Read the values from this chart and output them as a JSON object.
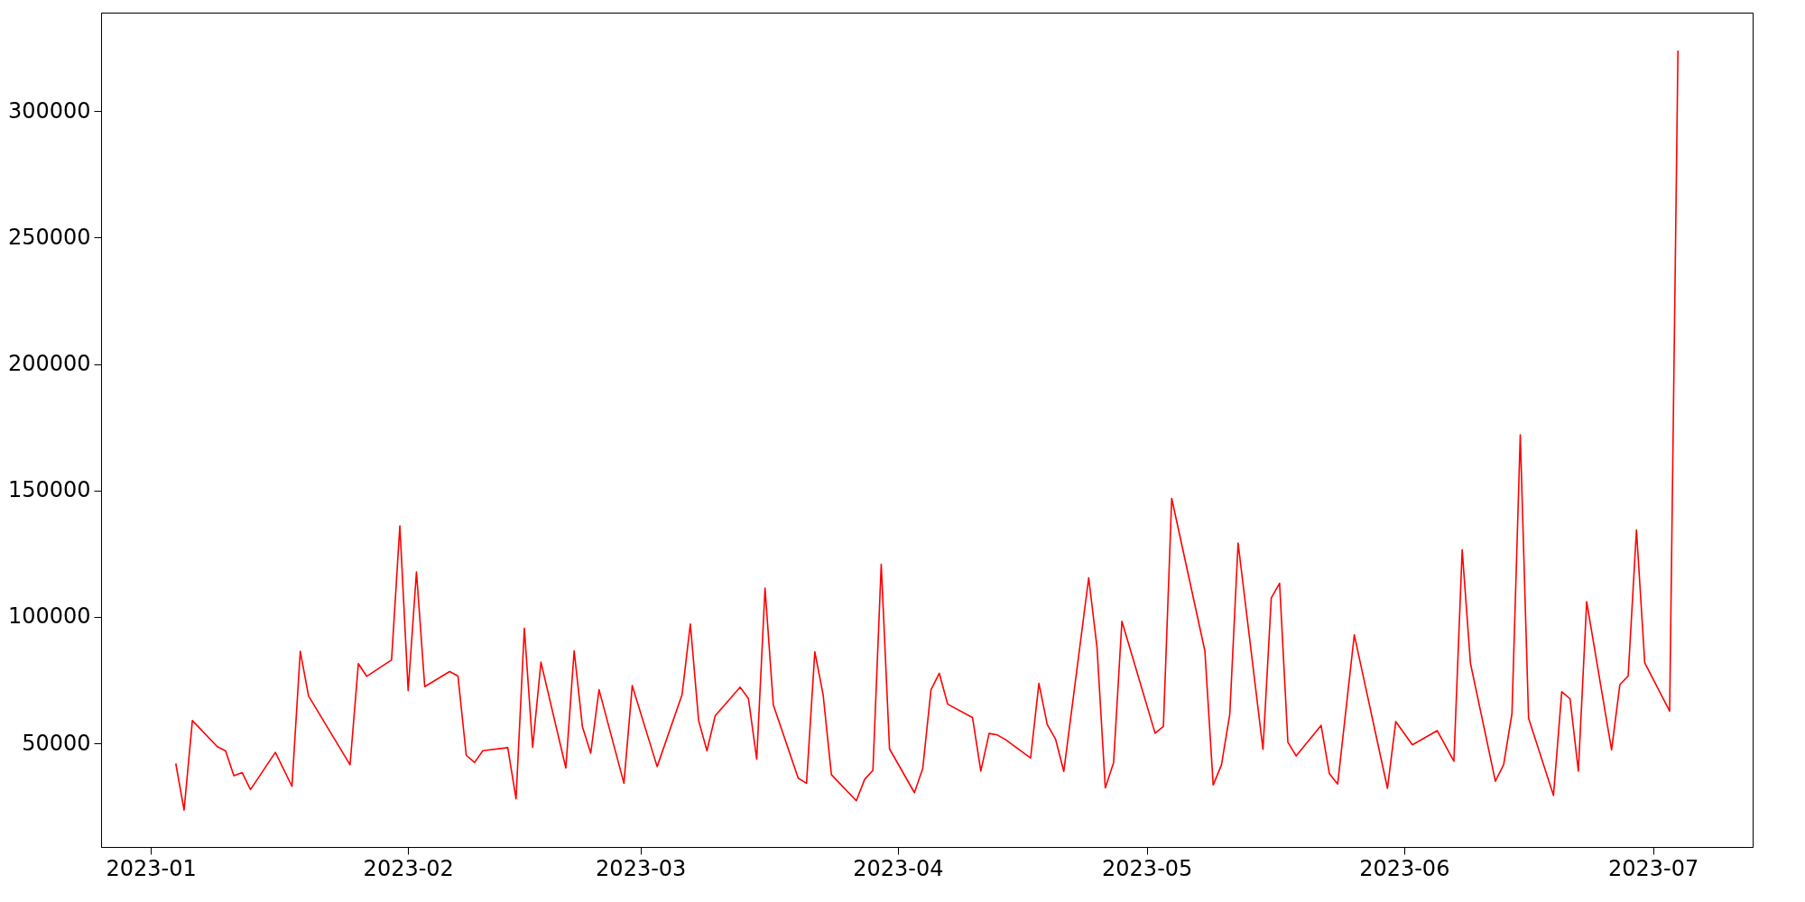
{
  "chart_data": {
    "type": "line",
    "x": [
      "2023-01-04",
      "2023-01-05",
      "2023-01-06",
      "2023-01-09",
      "2023-01-10",
      "2023-01-11",
      "2023-01-12",
      "2023-01-13",
      "2023-01-16",
      "2023-01-18",
      "2023-01-19",
      "2023-01-20",
      "2023-01-25",
      "2023-01-26",
      "2023-01-27",
      "2023-01-30",
      "2023-01-31",
      "2023-02-01",
      "2023-02-02",
      "2023-02-03",
      "2023-02-06",
      "2023-02-07",
      "2023-02-08",
      "2023-02-09",
      "2023-02-10",
      "2023-02-13",
      "2023-02-14",
      "2023-02-15",
      "2023-02-16",
      "2023-02-17",
      "2023-02-20",
      "2023-02-21",
      "2023-02-22",
      "2023-02-23",
      "2023-02-24",
      "2023-02-27",
      "2023-02-28",
      "2023-03-03",
      "2023-03-06",
      "2023-03-07",
      "2023-03-08",
      "2023-03-09",
      "2023-03-10",
      "2023-03-13",
      "2023-03-14",
      "2023-03-15",
      "2023-03-16",
      "2023-03-17",
      "2023-03-20",
      "2023-03-21",
      "2023-03-22",
      "2023-03-23",
      "2023-03-24",
      "2023-03-27",
      "2023-03-28",
      "2023-03-29",
      "2023-03-30",
      "2023-03-31",
      "2023-04-03",
      "2023-04-04",
      "2023-04-05",
      "2023-04-06",
      "2023-04-07",
      "2023-04-10",
      "2023-04-11",
      "2023-04-12",
      "2023-04-13",
      "2023-04-14",
      "2023-04-17",
      "2023-04-18",
      "2023-04-19",
      "2023-04-20",
      "2023-04-21",
      "2023-04-24",
      "2023-04-25",
      "2023-04-26",
      "2023-04-27",
      "2023-04-28",
      "2023-05-02",
      "2023-05-03",
      "2023-05-04",
      "2023-05-08",
      "2023-05-09",
      "2023-05-10",
      "2023-05-11",
      "2023-05-12",
      "2023-05-15",
      "2023-05-16",
      "2023-05-17",
      "2023-05-18",
      "2023-05-19",
      "2023-05-22",
      "2023-05-23",
      "2023-05-24",
      "2023-05-26",
      "2023-05-30",
      "2023-05-31",
      "2023-06-02",
      "2023-06-05",
      "2023-06-07",
      "2023-06-08",
      "2023-06-09",
      "2023-06-12",
      "2023-06-13",
      "2023-06-14",
      "2023-06-15",
      "2023-06-16",
      "2023-06-19",
      "2023-06-20",
      "2023-06-21",
      "2023-06-22",
      "2023-06-23",
      "2023-06-26",
      "2023-06-27",
      "2023-06-28",
      "2023-06-29",
      "2023-06-30",
      "2023-07-03",
      "2023-07-04"
    ],
    "series": [
      {
        "color": "#ff0000",
        "values": [
          42000,
          23600,
          59000,
          48700,
          47000,
          37200,
          38400,
          31700,
          46400,
          33000,
          86400,
          68700,
          41500,
          81500,
          76500,
          83000,
          136000,
          70800,
          117800,
          72400,
          78400,
          76600,
          45300,
          42400,
          47100,
          48300,
          28000,
          95500,
          48400,
          82100,
          40200,
          86600,
          56500,
          46100,
          71200,
          34200,
          72800,
          40800,
          69200,
          97200,
          59000,
          47100,
          60900,
          72200,
          67700,
          43700,
          111400,
          65200,
          36200,
          34200,
          86200,
          69200,
          37600,
          27300,
          35700,
          39300,
          120800,
          47800,
          30500,
          40000,
          71200,
          77700,
          65500,
          60200,
          39000,
          53900,
          53300,
          51400,
          44200,
          73700,
          57500,
          51700,
          38900,
          115500,
          88000,
          32400,
          42400,
          98300,
          54000,
          56700,
          146900,
          86500,
          33500,
          41500,
          61600,
          129200,
          47600,
          107500,
          113300,
          50400,
          45000,
          57100,
          38000,
          33900,
          92900,
          32200,
          58600,
          49400,
          55000,
          42900,
          126500,
          81600,
          35000,
          41600,
          61800,
          172000,
          59900,
          29400,
          70400,
          67600,
          39000,
          106000,
          47400,
          73200,
          76600,
          134400,
          81800,
          62700,
          324000
        ]
      }
    ],
    "xlim": [
      "2022-12-26",
      "2023-07-13"
    ],
    "xticks": [
      {
        "value": "2023-01-01",
        "label": "2023-01"
      },
      {
        "value": "2023-02-01",
        "label": "2023-02"
      },
      {
        "value": "2023-03-01",
        "label": "2023-03"
      },
      {
        "value": "2023-04-01",
        "label": "2023-04"
      },
      {
        "value": "2023-05-01",
        "label": "2023-05"
      },
      {
        "value": "2023-06-01",
        "label": "2023-06"
      },
      {
        "value": "2023-07-01",
        "label": "2023-07"
      }
    ],
    "ylim": [
      9000,
      339000
    ],
    "yticks": [
      50000,
      100000,
      150000,
      200000,
      250000,
      300000
    ],
    "grid": false
  }
}
